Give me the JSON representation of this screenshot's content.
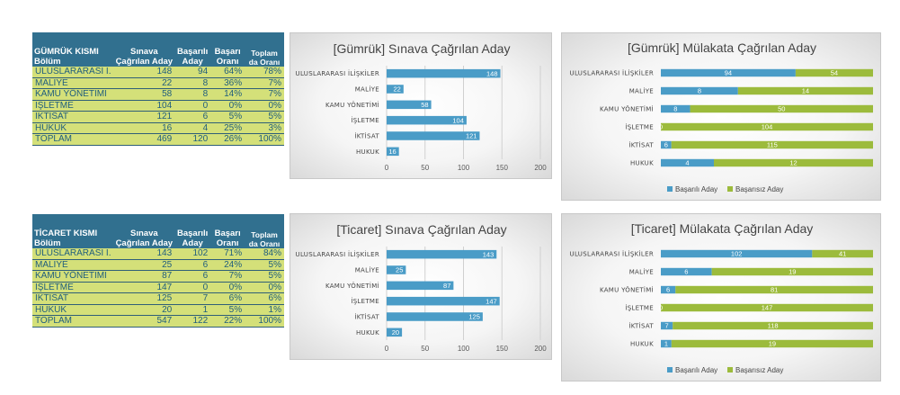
{
  "colors": {
    "blue": "#4a9cc7",
    "green": "#9cbb3c",
    "header": "#31708f",
    "row": "#d4e079"
  },
  "tables": [
    {
      "headers": [
        "GÜMRÜK KISMI Bölüm",
        "Sınava Çağrılan Aday",
        "Başarılı Aday",
        "Başarı Oranı",
        "Toplam da Oranı"
      ],
      "rows": [
        [
          "ULUSLARARASI İ.",
          "148",
          "94",
          "64%",
          "78%"
        ],
        [
          "MALİYE",
          "22",
          "8",
          "36%",
          "7%"
        ],
        [
          "KAMU YÖNETİMİ",
          "58",
          "8",
          "14%",
          "7%"
        ],
        [
          "İŞLETME",
          "104",
          "0",
          "0%",
          "0%"
        ],
        [
          "İKTİSAT",
          "121",
          "6",
          "5%",
          "5%"
        ],
        [
          "HUKUK",
          "16",
          "4",
          "25%",
          "3%"
        ],
        [
          "TOPLAM",
          "469",
          "120",
          "26%",
          "100%"
        ]
      ]
    },
    {
      "headers": [
        "TİCARET KISMI Bölüm",
        "Sınava Çağrılan Aday",
        "Başarılı Aday",
        "Başarı Oranı",
        "Toplam da Oranı"
      ],
      "rows": [
        [
          "ULUSLARARASI İ.",
          "143",
          "102",
          "71%",
          "84%"
        ],
        [
          "MALİYE",
          "25",
          "6",
          "24%",
          "5%"
        ],
        [
          "KAMU YÖNETİMİ",
          "87",
          "6",
          "7%",
          "5%"
        ],
        [
          "İŞLETME",
          "147",
          "0",
          "0%",
          "0%"
        ],
        [
          "İKTİSAT",
          "125",
          "7",
          "6%",
          "6%"
        ],
        [
          "HUKUK",
          "20",
          "1",
          "5%",
          "1%"
        ],
        [
          "TOPLAM",
          "547",
          "122",
          "22%",
          "100%"
        ]
      ]
    }
  ],
  "chart_data": [
    {
      "type": "bar",
      "orientation": "horizontal",
      "title": "[Gümrük] Sınava Çağrılan Aday",
      "categories": [
        "ULUSLARARASI İLİŞKİLER",
        "MALİYE",
        "KAMU YÖNETİMİ",
        "İŞLETME",
        "İKTİSAT",
        "HUKUK"
      ],
      "values": [
        148,
        22,
        58,
        104,
        121,
        16
      ],
      "xlim": [
        0,
        200
      ],
      "xticks": [
        0,
        50,
        100,
        150,
        200
      ],
      "grid": true
    },
    {
      "type": "bar",
      "orientation": "horizontal",
      "stacked": true,
      "title": "[Gümrük] Mülakata Çağrılan Aday",
      "categories": [
        "ULUSLARARASI İLİŞKİLER",
        "MALİYE",
        "KAMU YÖNETİMİ",
        "İŞLETME",
        "İKTİSAT",
        "HUKUK"
      ],
      "series": [
        {
          "name": "Başarılı Aday",
          "values": [
            94,
            8,
            8,
            0,
            6,
            4
          ]
        },
        {
          "name": "Başarısız Aday",
          "values": [
            54,
            14,
            50,
            104,
            115,
            12
          ]
        }
      ],
      "legend": "bottom"
    },
    {
      "type": "bar",
      "orientation": "horizontal",
      "title": "[Ticaret] Sınava Çağrılan Aday",
      "categories": [
        "ULUSLARARASI İLİŞKİLER",
        "MALİYE",
        "KAMU YÖNETİMİ",
        "İŞLETME",
        "İKTİSAT",
        "HUKUK"
      ],
      "values": [
        143,
        25,
        87,
        147,
        125,
        20
      ],
      "xlim": [
        0,
        200
      ],
      "xticks": [
        0,
        50,
        100,
        150,
        200
      ],
      "grid": true
    },
    {
      "type": "bar",
      "orientation": "horizontal",
      "stacked": true,
      "title": "[Ticaret] Mülakata Çağrılan Aday",
      "categories": [
        "ULUSLARARASI İLİŞKİLER",
        "MALİYE",
        "KAMU YÖNETİMİ",
        "İŞLETME",
        "İKTİSAT",
        "HUKUK"
      ],
      "series": [
        {
          "name": "Başarılı Aday",
          "values": [
            102,
            6,
            6,
            0,
            7,
            1
          ]
        },
        {
          "name": "Başarısız Aday",
          "values": [
            41,
            19,
            81,
            147,
            118,
            19
          ]
        }
      ],
      "legend": "bottom"
    }
  ]
}
